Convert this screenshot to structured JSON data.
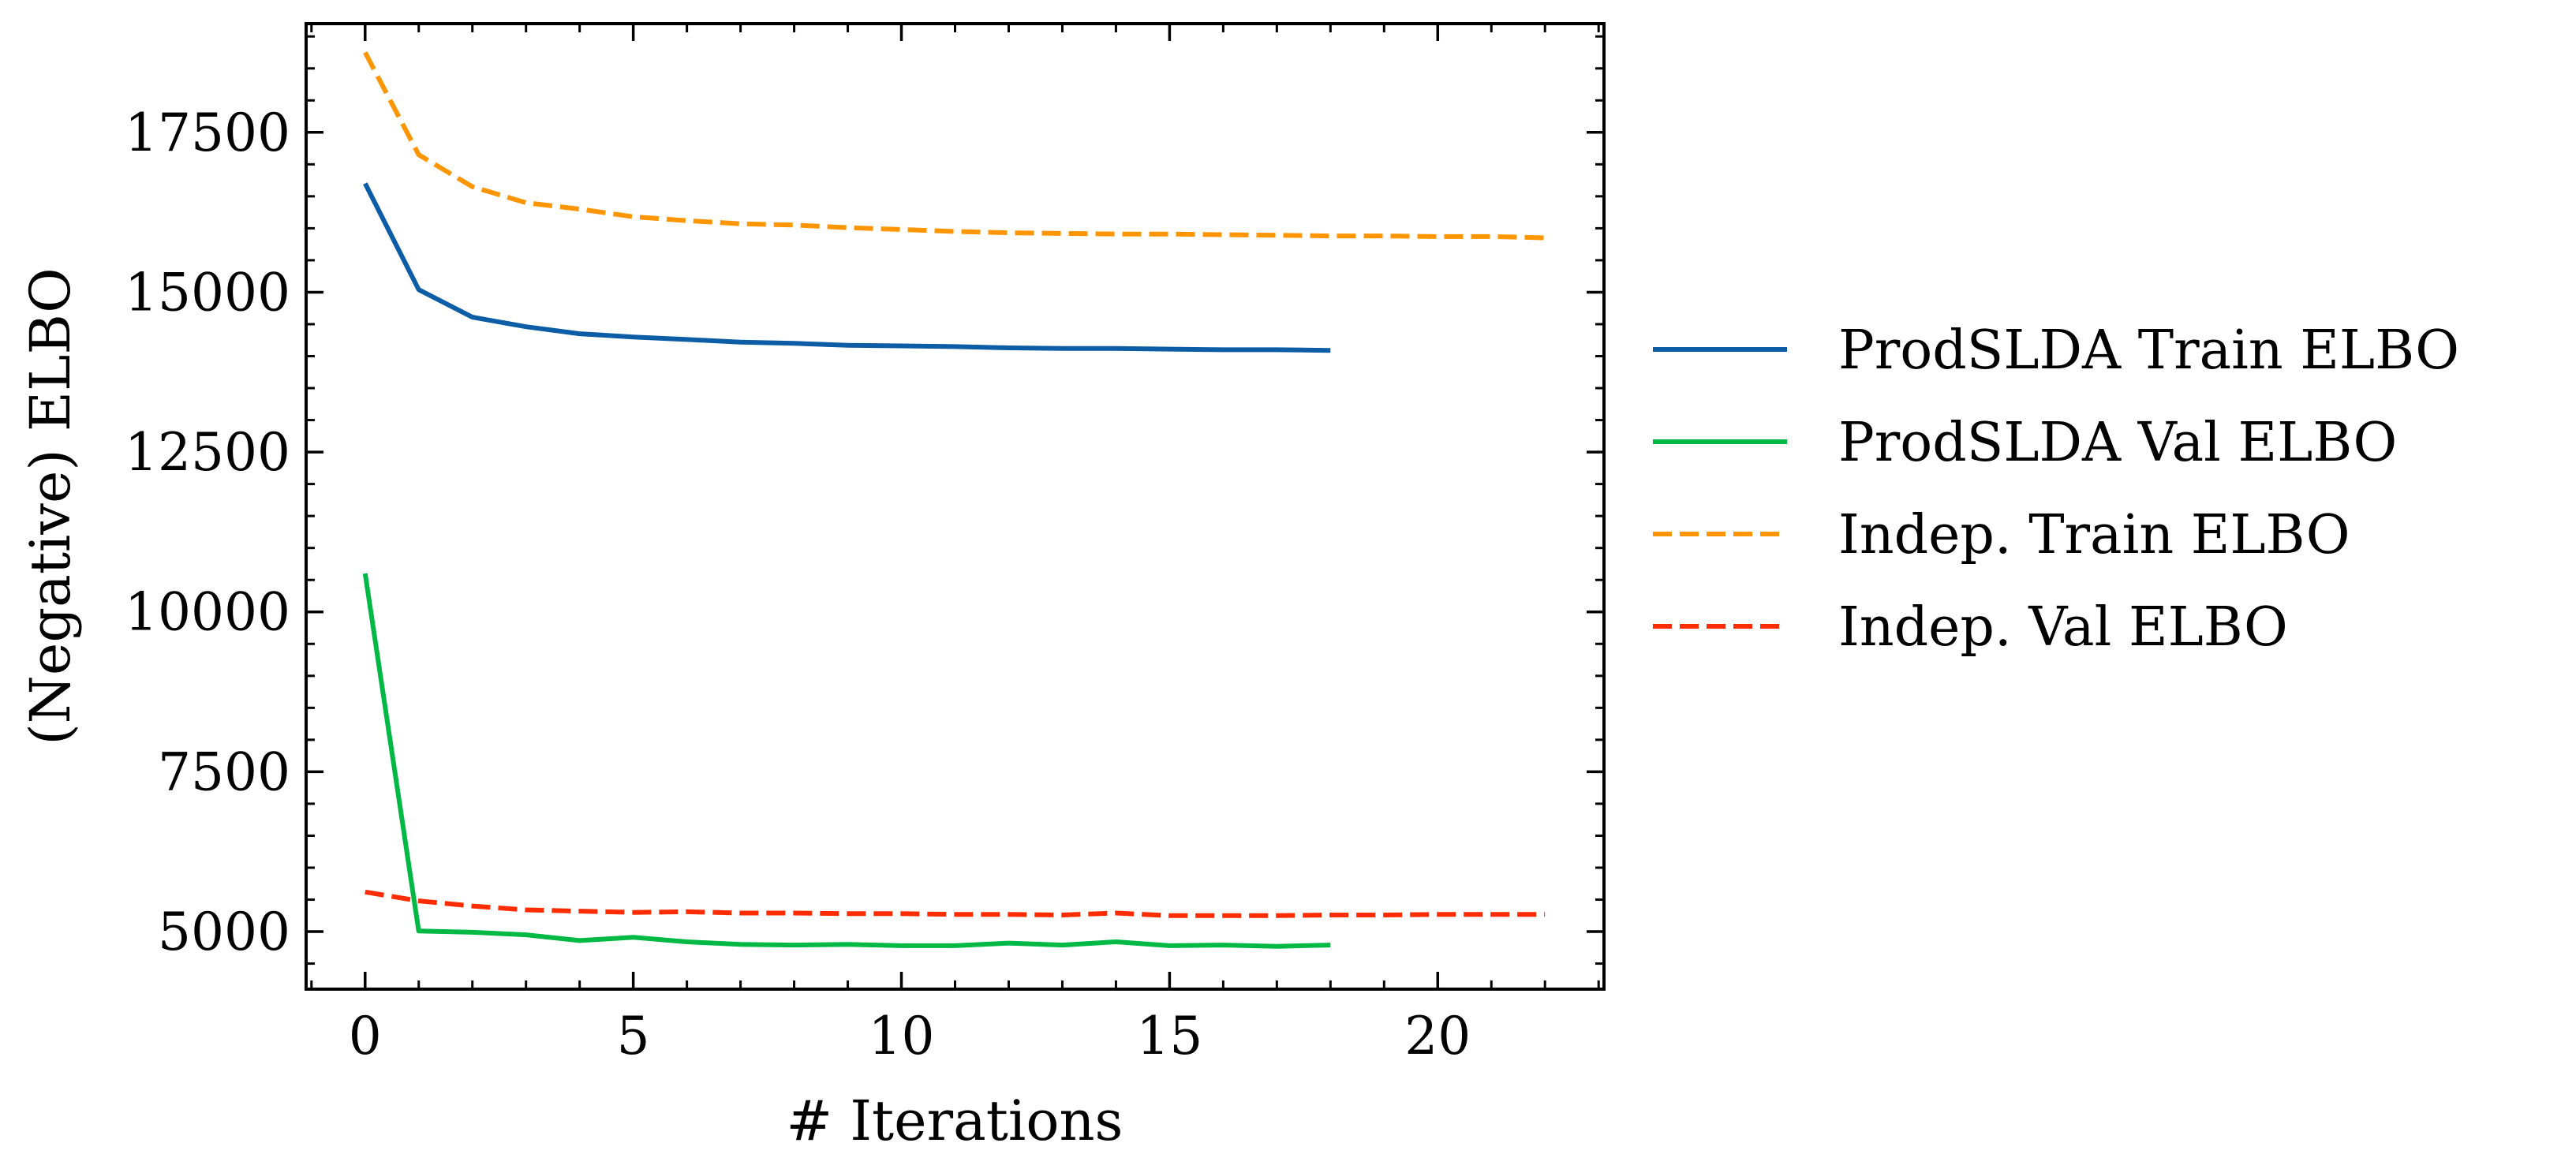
{
  "chart_data": {
    "type": "line",
    "title": "",
    "xlabel": "# Iterations",
    "ylabel": "(Negative) ELBO",
    "xlim": [
      -1.1,
      23.1
    ],
    "ylim": [
      4100,
      19200
    ],
    "xticks": [
      0,
      5,
      10,
      15,
      20
    ],
    "yticks": [
      5000,
      7500,
      10000,
      12500,
      15000,
      17500
    ],
    "x_minor_step": 1,
    "y_minor_step": 500,
    "grid": false,
    "legend_position": "outside-right",
    "series": [
      {
        "name": "ProdSLDA Train ELBO",
        "color": "#0C5DA5",
        "dash": "solid",
        "x": [
          0,
          1,
          2,
          3,
          4,
          5,
          6,
          7,
          8,
          9,
          10,
          11,
          12,
          13,
          14,
          15,
          16,
          17,
          18
        ],
        "y": [
          16700,
          15040,
          14610,
          14460,
          14350,
          14300,
          14260,
          14220,
          14200,
          14170,
          14160,
          14150,
          14130,
          14120,
          14120,
          14110,
          14100,
          14100,
          14090
        ]
      },
      {
        "name": "ProdSLDA Val ELBO",
        "color": "#00B945",
        "dash": "solid",
        "x": [
          0,
          1,
          2,
          3,
          4,
          5,
          6,
          7,
          8,
          9,
          10,
          11,
          12,
          13,
          14,
          15,
          16,
          17,
          18
        ],
        "y": [
          10600,
          5010,
          4990,
          4950,
          4860,
          4910,
          4840,
          4800,
          4790,
          4800,
          4780,
          4780,
          4820,
          4790,
          4840,
          4780,
          4790,
          4770,
          4790
        ]
      },
      {
        "name": "Indep. Train ELBO",
        "color": "#FF9500",
        "dash": "dashed",
        "x": [
          0,
          1,
          2,
          3,
          4,
          5,
          6,
          7,
          8,
          9,
          10,
          11,
          12,
          13,
          14,
          15,
          16,
          17,
          18,
          19,
          20,
          21,
          22
        ],
        "y": [
          18750,
          17150,
          16650,
          16400,
          16300,
          16180,
          16120,
          16070,
          16050,
          16010,
          15980,
          15950,
          15930,
          15920,
          15910,
          15910,
          15900,
          15890,
          15880,
          15880,
          15870,
          15870,
          15850
        ]
      },
      {
        "name": "Indep. Val ELBO",
        "color": "#FF2C00",
        "dash": "dashed",
        "x": [
          0,
          1,
          2,
          3,
          4,
          5,
          6,
          7,
          8,
          9,
          10,
          11,
          12,
          13,
          14,
          15,
          16,
          17,
          18,
          19,
          20,
          21,
          22
        ],
        "y": [
          5620,
          5480,
          5400,
          5340,
          5320,
          5300,
          5310,
          5290,
          5290,
          5280,
          5280,
          5270,
          5270,
          5260,
          5290,
          5250,
          5250,
          5250,
          5260,
          5260,
          5270,
          5270,
          5270
        ]
      }
    ]
  }
}
